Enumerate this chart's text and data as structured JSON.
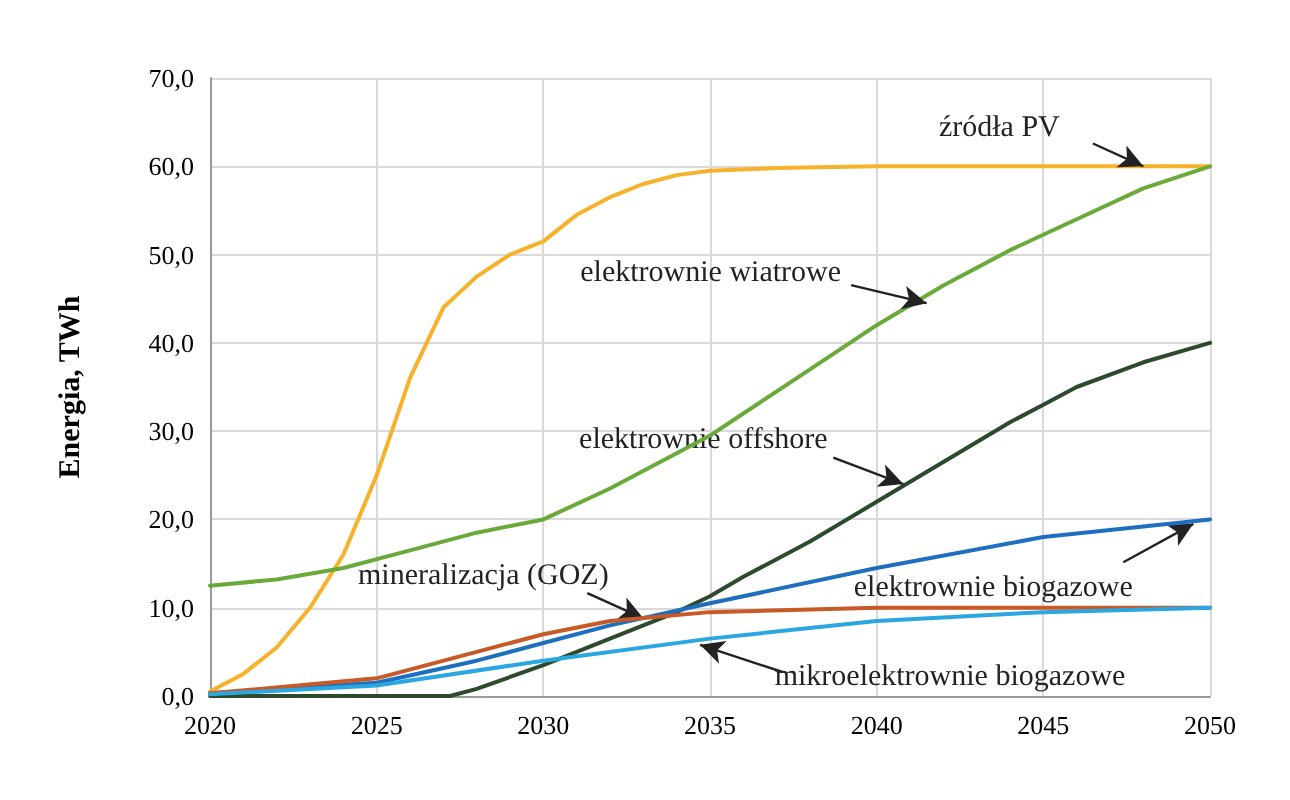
{
  "chart_data": {
    "type": "line",
    "ylabel": "Energia, TWh",
    "xlim": [
      2020,
      2050
    ],
    "xticks": [
      2020,
      2025,
      2030,
      2035,
      2040,
      2045,
      2050
    ],
    "ylim": [
      0,
      70
    ],
    "yticks": [
      {
        "value": 0,
        "label": "0,0"
      },
      {
        "value": 10,
        "label": "10,0"
      },
      {
        "value": 20,
        "label": "20,0"
      },
      {
        "value": 30,
        "label": "30,0"
      },
      {
        "value": 40,
        "label": "40,0"
      },
      {
        "value": 50,
        "label": "50,0"
      },
      {
        "value": 60,
        "label": "60,0"
      },
      {
        "value": 70,
        "label": "70,0"
      }
    ],
    "grid": true,
    "marker": "none",
    "line_style": "solid",
    "series": [
      {
        "color": "#f7b12a",
        "x": [
          2020,
          2021,
          2022,
          2023,
          2024,
          2025,
          2026,
          2027,
          2028,
          2029,
          2030,
          2031,
          2032,
          2033,
          2034,
          2035,
          2037,
          2040,
          2045,
          2050
        ],
        "values": [
          0.5,
          2.5,
          5.5,
          10,
          16,
          25,
          36,
          44,
          47.5,
          50,
          51.5,
          54.5,
          56.5,
          58,
          59,
          59.5,
          59.8,
          60,
          60,
          60
        ]
      },
      {
        "color": "#6aaa3a",
        "x": [
          2020,
          2022,
          2024,
          2026,
          2028,
          2030,
          2032,
          2034,
          2035,
          2036,
          2038,
          2040,
          2042,
          2044,
          2046,
          2048,
          2050
        ],
        "values": [
          12.5,
          13.2,
          14.5,
          16.5,
          18.5,
          20,
          23.5,
          27.5,
          29.5,
          32,
          37,
          42,
          46.5,
          50.5,
          54,
          57.5,
          60
        ]
      },
      {
        "color": "#2d4a2d",
        "x": [
          2020,
          2027.2,
          2028,
          2030,
          2032,
          2034,
          2035,
          2036,
          2038,
          2040,
          2042,
          2044,
          2045,
          2046,
          2048,
          2050
        ],
        "values": [
          0,
          0,
          0.8,
          3.5,
          6.5,
          9.5,
          11.3,
          13.5,
          17.5,
          22,
          26.5,
          31,
          33,
          35,
          37.8,
          40
        ]
      },
      {
        "color": "#1f6fc0",
        "x": [
          2020,
          2025,
          2028,
          2030,
          2032,
          2035,
          2040,
          2045,
          2050
        ],
        "values": [
          0.3,
          1.5,
          4,
          6,
          8,
          10.5,
          14.5,
          18,
          20
        ]
      },
      {
        "color": "#c85a28",
        "x": [
          2020,
          2025,
          2028,
          2030,
          2032,
          2035,
          2040,
          2050
        ],
        "values": [
          0.3,
          2,
          5,
          7,
          8.5,
          9.5,
          10,
          10
        ]
      },
      {
        "color": "#2aa7e0",
        "x": [
          2020,
          2025,
          2030,
          2035,
          2040,
          2045,
          2050
        ],
        "values": [
          0.2,
          1.2,
          4,
          6.5,
          8.5,
          9.5,
          10
        ]
      }
    ],
    "annotations": [
      {
        "text": "źródła PV",
        "x": 2048,
        "y": 60
      },
      {
        "text": "elektrownie wiatrowe",
        "x": 2041.5,
        "y": 44.5
      },
      {
        "text": "elektrownie offshore",
        "x": 2040.8,
        "y": 24
      },
      {
        "text": "mineralizacja (GOZ)",
        "x": 2033,
        "y": 8.8
      },
      {
        "text": "elektrownie biogazowe",
        "x": 2049.5,
        "y": 19.5
      },
      {
        "text": "mikroelektrownie biogazowe",
        "x": 2034.7,
        "y": 5.8
      }
    ]
  }
}
